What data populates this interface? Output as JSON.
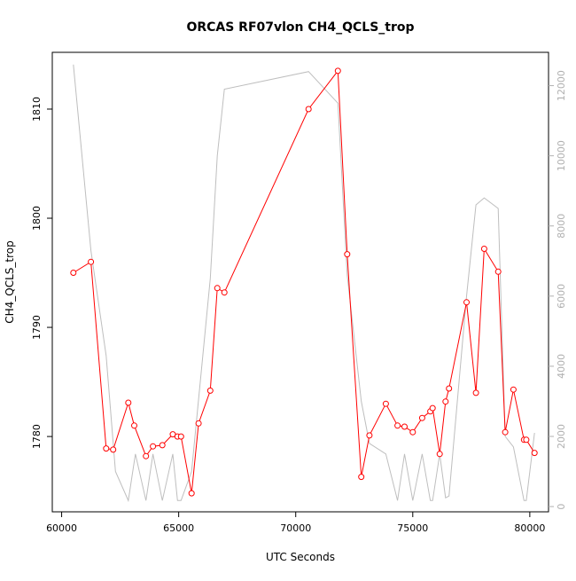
{
  "chart_data": {
    "type": "line",
    "title": "ORCAS RF07vlon CH4_QCLS_trop",
    "xlabel": "UTC Seconds",
    "ylabel": "CH4_QCLS_trop",
    "xlim": [
      59600,
      80800
    ],
    "ylim": [
      1773.1,
      1815.2
    ],
    "y2lim": [
      -150,
      12950
    ],
    "x_ticks": [
      60000,
      65000,
      70000,
      75000,
      80000
    ],
    "y_ticks": [
      1780,
      1790,
      1800,
      1810
    ],
    "y2_ticks": [
      0,
      2000,
      4000,
      6000,
      8000,
      10000,
      12000
    ],
    "grid": false,
    "legend": "none",
    "colors": {
      "primary": "#ff0000",
      "secondary": "#bebebe",
      "axis": "#000000"
    },
    "series": [
      {
        "axis": "left",
        "style": "line+points",
        "color": "#ff0000",
        "points": [
          [
            60500,
            1795.0
          ],
          [
            61250,
            1796.0
          ],
          [
            61900,
            1778.9
          ],
          [
            62200,
            1778.8
          ],
          [
            62850,
            1783.1
          ],
          [
            63100,
            1781.0
          ],
          [
            63600,
            1778.2
          ],
          [
            63900,
            1779.1
          ],
          [
            64300,
            1779.2
          ],
          [
            64750,
            1780.2
          ],
          [
            64950,
            1780.0
          ],
          [
            65100,
            1780.0
          ],
          [
            65550,
            1774.8
          ],
          [
            65850,
            1781.2
          ],
          [
            66350,
            1784.2
          ],
          [
            66650,
            1793.6
          ],
          [
            66950,
            1793.2
          ],
          [
            70550,
            1810.0
          ],
          [
            71800,
            1813.5
          ],
          [
            72200,
            1796.7
          ],
          [
            72800,
            1776.3
          ],
          [
            73150,
            1780.1
          ],
          [
            73850,
            1783.0
          ],
          [
            74350,
            1781.0
          ],
          [
            74650,
            1780.9
          ],
          [
            75000,
            1780.4
          ],
          [
            75400,
            1781.7
          ],
          [
            75750,
            1782.3
          ],
          [
            75850,
            1782.6
          ],
          [
            76150,
            1778.4
          ],
          [
            76400,
            1783.2
          ],
          [
            76550,
            1784.4
          ],
          [
            77300,
            1792.3
          ],
          [
            77700,
            1784.0
          ],
          [
            78050,
            1797.2
          ],
          [
            78650,
            1795.1
          ],
          [
            78950,
            1780.4
          ],
          [
            79300,
            1784.3
          ],
          [
            79750,
            1779.7
          ],
          [
            79850,
            1779.7
          ],
          [
            80200,
            1778.5
          ]
        ]
      },
      {
        "axis": "right",
        "style": "line",
        "color": "#bebebe",
        "points": [
          [
            60500,
            12600
          ],
          [
            61250,
            7300
          ],
          [
            61900,
            4300
          ],
          [
            62300,
            1000
          ],
          [
            62850,
            170
          ],
          [
            63150,
            1500
          ],
          [
            63600,
            170
          ],
          [
            63900,
            1500
          ],
          [
            64300,
            170
          ],
          [
            64750,
            1500
          ],
          [
            64950,
            170
          ],
          [
            65100,
            170
          ],
          [
            65550,
            1000
          ],
          [
            66350,
            6500
          ],
          [
            66650,
            10000
          ],
          [
            66950,
            11900
          ],
          [
            70550,
            12400
          ],
          [
            71800,
            11500
          ],
          [
            72200,
            6600
          ],
          [
            72800,
            3000
          ],
          [
            73150,
            1800
          ],
          [
            73850,
            1500
          ],
          [
            74350,
            170
          ],
          [
            74650,
            1500
          ],
          [
            75000,
            170
          ],
          [
            75400,
            1500
          ],
          [
            75750,
            170
          ],
          [
            75850,
            170
          ],
          [
            76150,
            1500
          ],
          [
            76400,
            250
          ],
          [
            76550,
            300
          ],
          [
            77300,
            6000
          ],
          [
            77700,
            8600
          ],
          [
            78050,
            8800
          ],
          [
            78650,
            8500
          ],
          [
            78950,
            2000
          ],
          [
            79300,
            1700
          ],
          [
            79750,
            170
          ],
          [
            79850,
            170
          ],
          [
            80200,
            2100
          ]
        ]
      }
    ]
  }
}
